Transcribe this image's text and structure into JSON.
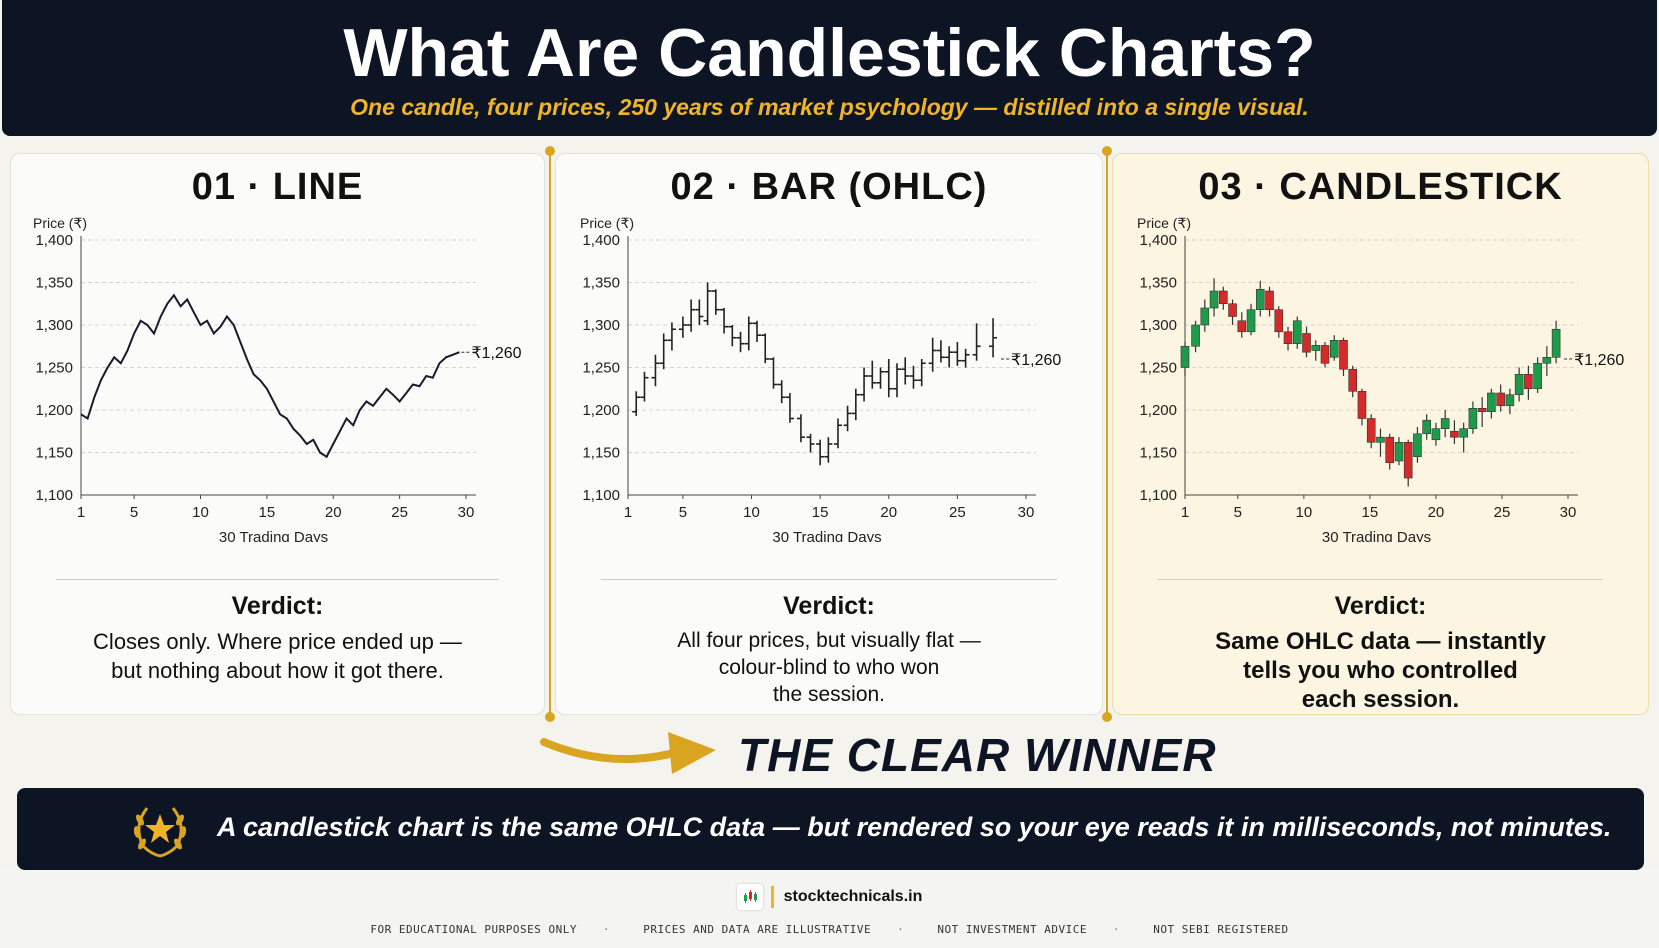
{
  "header": {
    "title": "What Are Candlestick Charts?",
    "subtitle": "One candle, four prices, 250 years of market psychology — distilled into a single visual."
  },
  "panels": [
    {
      "title": "01 · LINE",
      "verdict_title": "Verdict:",
      "verdict_lines": [
        "Closes only. Where price ended up —",
        "but nothing about how it got there."
      ]
    },
    {
      "title": "02 · BAR (OHLC)",
      "verdict_title": "Verdict:",
      "verdict_lines": [
        "All four prices, but visually flat —",
        "colour-blind to who won",
        "the session."
      ]
    },
    {
      "title": "03 · CANDLESTICK",
      "verdict_title": "Verdict:",
      "verdict_lines": [
        "Same OHLC data — instantly",
        "tells you who controlled",
        "each session."
      ]
    }
  ],
  "winner": {
    "label": "THE CLEAR WINNER"
  },
  "banner": {
    "text": "A candlestick chart is the same OHLC data — but rendered so your eye reads it in milliseconds, not minutes."
  },
  "footer": {
    "brand": "stocktechnicals.in",
    "disclaimers": [
      "FOR EDUCATIONAL PURPOSES ONLY",
      "PRICES AND DATA ARE ILLUSTRATIVE",
      "NOT INVESTMENT ADVICE",
      "NOT SEBI REGISTERED"
    ]
  },
  "colors": {
    "navy": "#0d1424",
    "gold": "#f0b429",
    "bull": "#1f9a4b",
    "bear": "#d42a2a",
    "ink": "#1a1a2e"
  },
  "chart_data": [
    {
      "type": "line",
      "ylabel": "Price (₹)",
      "xlabel": "30 Trading Days",
      "xticks": [
        1,
        5,
        10,
        15,
        20,
        25,
        30
      ],
      "yticks": [
        "1,100",
        "1,150",
        "1,200",
        "1,250",
        "1,300",
        "1,350",
        "1,400"
      ],
      "xlim": [
        1,
        30
      ],
      "ylim": [
        1100,
        1400
      ],
      "grid": true,
      "annotation": "₹1,260",
      "x": [
        1,
        1.5,
        2,
        2.5,
        3,
        3.5,
        4,
        4.5,
        5,
        5.5,
        6,
        6.5,
        7,
        7.5,
        8,
        8.5,
        9,
        9.5,
        10,
        10.5,
        11,
        11.5,
        12,
        12.5,
        13,
        13.5,
        14,
        14.5,
        15,
        15.5,
        16,
        16.5,
        17,
        17.5,
        18,
        18.5,
        19,
        19.5,
        20,
        20.5,
        21,
        21.5,
        22,
        22.5,
        23,
        23.5,
        24,
        24.5,
        25,
        25.5,
        26,
        26.5,
        27,
        27.5,
        28,
        28.5,
        29,
        29.5
      ],
      "y": [
        1195,
        1190,
        1215,
        1235,
        1250,
        1262,
        1255,
        1270,
        1290,
        1305,
        1300,
        1290,
        1310,
        1325,
        1335,
        1322,
        1330,
        1315,
        1300,
        1305,
        1290,
        1298,
        1310,
        1300,
        1280,
        1260,
        1242,
        1235,
        1225,
        1210,
        1195,
        1190,
        1178,
        1170,
        1160,
        1165,
        1150,
        1145,
        1160,
        1175,
        1190,
        1182,
        1200,
        1210,
        1205,
        1215,
        1225,
        1218,
        1210,
        1220,
        1230,
        1228,
        1240,
        1238,
        1255,
        1262,
        1265,
        1268
      ]
    },
    {
      "type": "bar",
      "ylabel": "Price (₹)",
      "xlabel": "30 Trading Days",
      "xticks": [
        1,
        5,
        10,
        15,
        20,
        25,
        30
      ],
      "yticks": [
        "1,100",
        "1,150",
        "1,200",
        "1,250",
        "1,300",
        "1,350",
        "1,400"
      ],
      "xlim": [
        1,
        30
      ],
      "ylim": [
        1100,
        1400
      ],
      "grid": true,
      "annotation": "₹1,260",
      "ohlc": [
        [
          1.6,
          1198,
          1222,
          1193,
          1215
        ],
        [
          2.2,
          1215,
          1245,
          1210,
          1238
        ],
        [
          3.0,
          1238,
          1265,
          1228,
          1255
        ],
        [
          3.6,
          1255,
          1290,
          1248,
          1282
        ],
        [
          4.2,
          1282,
          1303,
          1270,
          1295
        ],
        [
          5.0,
          1295,
          1310,
          1285,
          1300
        ],
        [
          5.6,
          1300,
          1330,
          1292,
          1318
        ],
        [
          6.2,
          1318,
          1330,
          1300,
          1310
        ],
        [
          6.8,
          1305,
          1350,
          1300,
          1340
        ],
        [
          7.4,
          1340,
          1342,
          1312,
          1318
        ],
        [
          8.0,
          1318,
          1320,
          1290,
          1298
        ],
        [
          8.6,
          1298,
          1300,
          1275,
          1285
        ],
        [
          9.2,
          1285,
          1292,
          1268,
          1278
        ],
        [
          9.8,
          1278,
          1310,
          1270,
          1302
        ],
        [
          10.4,
          1302,
          1305,
          1280,
          1288
        ],
        [
          11.0,
          1288,
          1290,
          1255,
          1260
        ],
        [
          11.6,
          1260,
          1262,
          1225,
          1230
        ],
        [
          12.2,
          1230,
          1235,
          1208,
          1215
        ],
        [
          12.8,
          1215,
          1220,
          1185,
          1190
        ],
        [
          13.6,
          1190,
          1195,
          1162,
          1168
        ],
        [
          14.3,
          1168,
          1172,
          1150,
          1160
        ],
        [
          15.0,
          1160,
          1165,
          1135,
          1145
        ],
        [
          15.6,
          1145,
          1168,
          1138,
          1160
        ],
        [
          16.3,
          1160,
          1190,
          1155,
          1182
        ],
        [
          17.0,
          1182,
          1205,
          1175,
          1196
        ],
        [
          17.6,
          1196,
          1225,
          1188,
          1218
        ],
        [
          18.2,
          1218,
          1250,
          1210,
          1240
        ],
        [
          18.8,
          1240,
          1258,
          1225,
          1232
        ],
        [
          19.4,
          1232,
          1250,
          1225,
          1245
        ],
        [
          20.0,
          1245,
          1260,
          1215,
          1225
        ],
        [
          20.6,
          1225,
          1255,
          1215,
          1248
        ],
        [
          21.2,
          1248,
          1262,
          1230,
          1240
        ],
        [
          21.8,
          1240,
          1252,
          1225,
          1235
        ],
        [
          22.4,
          1235,
          1260,
          1228,
          1255
        ],
        [
          23.2,
          1255,
          1285,
          1245,
          1270
        ],
        [
          23.8,
          1270,
          1282,
          1256,
          1262
        ],
        [
          24.4,
          1262,
          1275,
          1250,
          1268
        ],
        [
          25.0,
          1268,
          1280,
          1252,
          1258
        ],
        [
          25.6,
          1258,
          1272,
          1250,
          1265
        ],
        [
          26.4,
          1265,
          1302,
          1258,
          1275
        ],
        [
          27.6,
          1275,
          1308,
          1262,
          1285
        ]
      ]
    },
    {
      "type": "candlestick",
      "ylabel": "Price (₹)",
      "xlabel": "30 Trading Days",
      "xticks": [
        1,
        5,
        10,
        15,
        20,
        25,
        30
      ],
      "yticks": [
        "1,100",
        "1,150",
        "1,200",
        "1,250",
        "1,300",
        "1,350",
        "1,400"
      ],
      "xlim": [
        1,
        30
      ],
      "ylim": [
        1100,
        1400
      ],
      "grid": true,
      "annotation": "₹1,260",
      "ohlc": [
        [
          1.0,
          1250,
          1280,
          1240,
          1275
        ],
        [
          1.8,
          1275,
          1305,
          1268,
          1300
        ],
        [
          2.5,
          1300,
          1330,
          1292,
          1320
        ],
        [
          3.2,
          1320,
          1355,
          1310,
          1340
        ],
        [
          3.9,
          1340,
          1345,
          1318,
          1325
        ],
        [
          4.6,
          1325,
          1330,
          1300,
          1310
        ],
        [
          5.3,
          1305,
          1315,
          1285,
          1292
        ],
        [
          6.0,
          1292,
          1325,
          1288,
          1318
        ],
        [
          6.7,
          1318,
          1352,
          1310,
          1342
        ],
        [
          7.4,
          1340,
          1345,
          1310,
          1318
        ],
        [
          8.1,
          1318,
          1322,
          1285,
          1292
        ],
        [
          8.8,
          1292,
          1298,
          1270,
          1278
        ],
        [
          9.5,
          1278,
          1310,
          1272,
          1305
        ],
        [
          10.2,
          1290,
          1298,
          1262,
          1268
        ],
        [
          10.9,
          1270,
          1282,
          1258,
          1276
        ],
        [
          11.6,
          1276,
          1280,
          1250,
          1255
        ],
        [
          12.3,
          1262,
          1288,
          1258,
          1282
        ],
        [
          13.0,
          1282,
          1285,
          1240,
          1248
        ],
        [
          13.7,
          1248,
          1252,
          1215,
          1222
        ],
        [
          14.4,
          1222,
          1225,
          1182,
          1190
        ],
        [
          15.1,
          1190,
          1195,
          1155,
          1162
        ],
        [
          15.8,
          1162,
          1178,
          1145,
          1168
        ],
        [
          16.5,
          1168,
          1172,
          1130,
          1138
        ],
        [
          17.2,
          1140,
          1168,
          1135,
          1162
        ],
        [
          17.9,
          1162,
          1165,
          1110,
          1120
        ],
        [
          18.6,
          1145,
          1180,
          1138,
          1172
        ],
        [
          19.3,
          1172,
          1195,
          1165,
          1188
        ],
        [
          20.0,
          1165,
          1185,
          1158,
          1178
        ],
        [
          20.7,
          1178,
          1200,
          1168,
          1190
        ],
        [
          21.4,
          1175,
          1188,
          1160,
          1168
        ],
        [
          22.1,
          1168,
          1185,
          1150,
          1178
        ],
        [
          22.8,
          1178,
          1210,
          1172,
          1202
        ],
        [
          23.5,
          1202,
          1215,
          1180,
          1198
        ],
        [
          24.2,
          1198,
          1225,
          1190,
          1220
        ],
        [
          24.9,
          1220,
          1230,
          1198,
          1205
        ],
        [
          25.6,
          1205,
          1225,
          1195,
          1218
        ],
        [
          26.3,
          1218,
          1250,
          1210,
          1242
        ],
        [
          27.0,
          1242,
          1252,
          1212,
          1225
        ],
        [
          27.7,
          1225,
          1262,
          1220,
          1255
        ],
        [
          28.4,
          1255,
          1275,
          1240,
          1262
        ],
        [
          29.1,
          1262,
          1305,
          1255,
          1295
        ]
      ]
    }
  ]
}
